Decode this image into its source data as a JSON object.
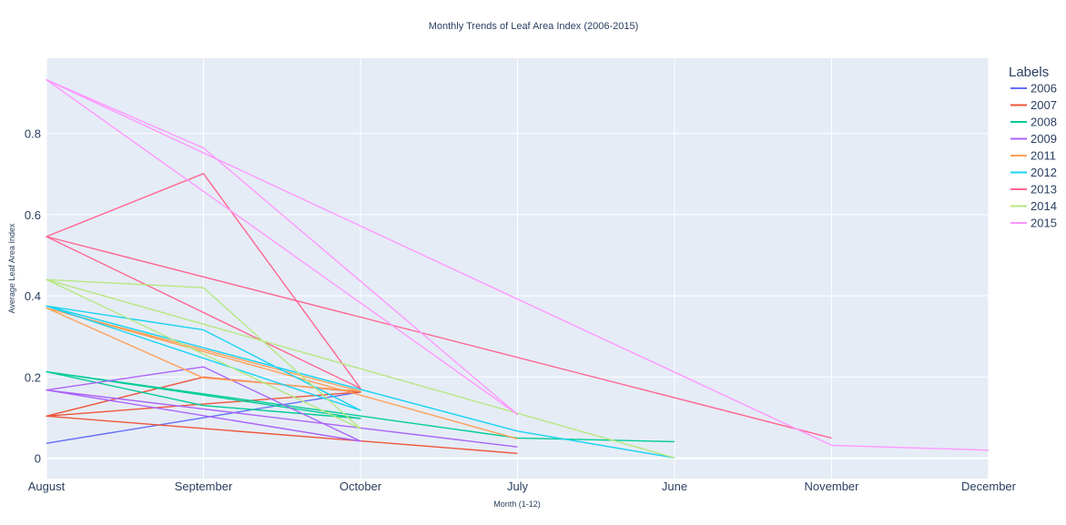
{
  "chart_data": {
    "type": "line",
    "title": "Monthly Trends of Leaf Area Index (2006-2015)",
    "xlabel": "Month (1-12)",
    "ylabel": "Average Leaf Area Index",
    "categories": [
      "August",
      "September",
      "October",
      "July",
      "June",
      "November",
      "December"
    ],
    "ylim": [
      -0.05,
      0.985
    ],
    "yticks": [
      0,
      0.2,
      0.4,
      0.6,
      0.8
    ],
    "ytick_labels": [
      "0",
      "0.2",
      "0.4",
      "0.6",
      "0.8"
    ],
    "grid": true,
    "legend_title": "Labels",
    "legend_position": "right",
    "series": [
      {
        "name": "2006",
        "color": "#636efa",
        "points": [
          [
            "August",
            0.037
          ],
          [
            "October",
            0.163
          ]
        ]
      },
      {
        "name": "2007",
        "color": "#ef553b",
        "points": [
          [
            "August",
            0.104
          ],
          [
            "September",
            0.2
          ],
          [
            "October",
            0.163
          ],
          [
            "August",
            0.104
          ],
          [
            "July",
            0.012
          ]
        ]
      },
      {
        "name": "2008",
        "color": "#00cc96",
        "points": [
          [
            "August",
            0.213
          ],
          [
            "September",
            0.13
          ],
          [
            "October",
            0.098
          ],
          [
            "August",
            0.213
          ],
          [
            "July",
            0.05
          ],
          [
            "June",
            0.041
          ]
        ]
      },
      {
        "name": "2009",
        "color": "#ab63fa",
        "points": [
          [
            "August",
            0.168
          ],
          [
            "September",
            0.225
          ],
          [
            "October",
            0.042
          ],
          [
            "August",
            0.168
          ],
          [
            "July",
            0.028
          ]
        ]
      },
      {
        "name": "2011",
        "color": "#ffa15a",
        "points": [
          [
            "August",
            0.37
          ],
          [
            "September",
            0.198
          ],
          [
            "October",
            0.165
          ],
          [
            "August",
            0.37
          ],
          [
            "July",
            0.048
          ]
        ]
      },
      {
        "name": "2012",
        "color": "#19d3f3",
        "points": [
          [
            "August",
            0.375
          ],
          [
            "September",
            0.316
          ],
          [
            "October",
            0.118
          ],
          [
            "August",
            0.375
          ],
          [
            "July",
            0.067
          ],
          [
            "June",
            0.001
          ]
        ]
      },
      {
        "name": "2013",
        "color": "#ff6692",
        "points": [
          [
            "August",
            0.546
          ],
          [
            "September",
            0.701
          ],
          [
            "October",
            0.172
          ],
          [
            "August",
            0.546
          ],
          [
            "November",
            0.05
          ]
        ]
      },
      {
        "name": "2014",
        "color": "#b6e880",
        "points": [
          [
            "August",
            0.44
          ],
          [
            "September",
            0.42
          ],
          [
            "October",
            0.073
          ],
          [
            "August",
            0.44
          ],
          [
            "June",
            0.001
          ]
        ]
      },
      {
        "name": "2015",
        "color": "#ff97ff",
        "points": [
          [
            "August",
            0.932
          ],
          [
            "September",
            0.764
          ],
          [
            "July",
            0.108
          ],
          [
            "August",
            0.932
          ],
          [
            "November",
            0.032
          ],
          [
            "December",
            0.02
          ]
        ]
      }
    ]
  }
}
